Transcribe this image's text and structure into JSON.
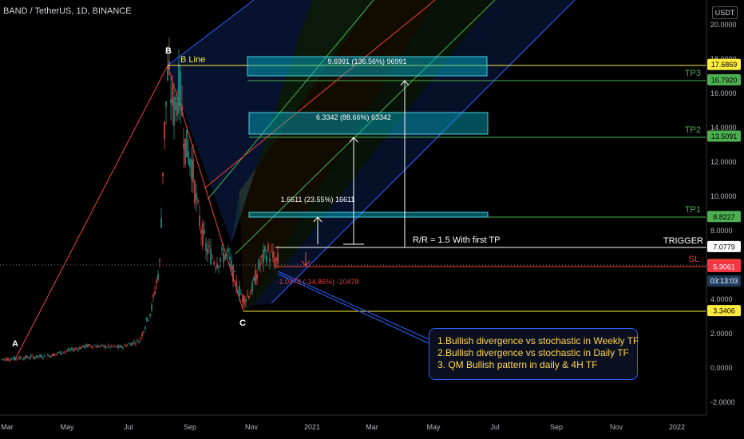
{
  "header": {
    "symbol": "BAND / TetherUS, 1D, BINANCE",
    "currency": "USDT"
  },
  "chart_data": {
    "type": "candlestick",
    "symbol": "BAND / TetherUS",
    "interval": "1D",
    "exchange": "BINANCE",
    "ylim": [
      -2.6,
      21.0
    ],
    "y_ticks": [
      "20.0000",
      "18.0000",
      "16.0000",
      "14.0000",
      "12.0000",
      "10.0000",
      "8.0000",
      "6.0000",
      "4.0000",
      "2.0000",
      "0.0000",
      "-2.0000"
    ],
    "x_ticks": [
      "Mar",
      "May",
      "Jul",
      "Sep",
      "Nov",
      "2021",
      "Mar",
      "May",
      "Jul",
      "Sep",
      "Nov",
      "2022"
    ],
    "price_levels": [
      {
        "name": "TP3",
        "value": 16.792,
        "label": "16.7920",
        "color": "#4caf50"
      },
      {
        "name": "TP2",
        "value": 13.5091,
        "label": "13.5091",
        "color": "#4caf50"
      },
      {
        "name": "TP1",
        "value": 8.8227,
        "label": "8.8227",
        "color": "#4caf50"
      },
      {
        "name": "TRIGGER",
        "value": 7.0779,
        "label": "7.0779",
        "color": "#ffffff"
      },
      {
        "name": "SL",
        "value": 6.0282,
        "label": "6.0282",
        "color": "#f44336"
      },
      {
        "name": "B Line",
        "value": 17.6869,
        "label": "17.6869",
        "color": "#ffeb3b"
      },
      {
        "name": "",
        "value": 3.3406,
        "label": "3.3406",
        "color": "#ffeb3b"
      }
    ],
    "last_price": {
      "value": 5.9061,
      "label": "5.9061",
      "countdown": "03:13:03"
    },
    "pivots": [
      {
        "label": "A",
        "date": "Mar",
        "price": 0.4
      },
      {
        "label": "B",
        "date": "Aug",
        "price": 17.68
      },
      {
        "label": "C",
        "date": "Nov",
        "price": 3.34
      }
    ],
    "measurements": [
      {
        "label": "9.6991 (136.56%) 96991"
      },
      {
        "label": "6.3342 (88.66%) 63342"
      },
      {
        "label": "1.6611 (23.55%) 16611"
      },
      {
        "label": "-1.0478 (-14.86%) -10478"
      }
    ],
    "annotations": {
      "b_line": "B Line",
      "trigger": "TRIGGER",
      "sl": "SL",
      "tp1": "TP1",
      "tp2": "TP2",
      "tp3": "TP3",
      "rr": "R/R = 1.5 With first TP"
    },
    "notes": [
      "1.Bullish divergence vs stochastic in Weekly TF",
      "2.Bullish divergence vs stochastic in Daily TF",
      "3. QM Bullish pattern in daily & 4H TF"
    ]
  }
}
